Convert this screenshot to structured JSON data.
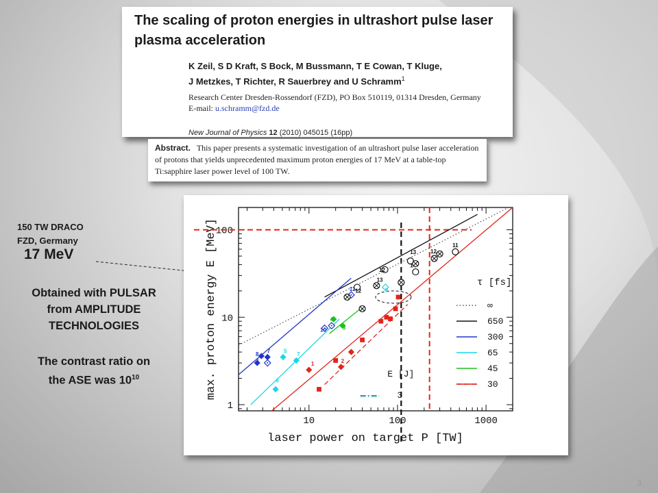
{
  "paper": {
    "title": "The scaling of proton energies in ultrashort pulse laser plasma acceleration",
    "authors_line1": "K Zeil, S D Kraft, S Bock, M Bussmann, T E Cowan, T Kluge,",
    "authors_line2": "J Metzkes, T Richter, R Sauerbrey and U Schramm",
    "authors_sup": "1",
    "affiliation": "Research Center Dresden-Rossendorf (FZD), PO Box 510119, 01314 Dresden, Germany",
    "email_label": "E-mail: ",
    "email": "u.schramm@fzd.de",
    "journal_name": "New Journal of Physics",
    "journal_volume": "12",
    "journal_rest": "(2010) 045015 (16pp)"
  },
  "abstract": {
    "label": "Abstract.",
    "text": "This paper presents a systematic investigation of an ultrashort pulse laser acceleration of protons that yields unprecedented maximum proton energies of 17 MeV at a table-top Ti:sapphire laser power level of 100 TW."
  },
  "annotations": {
    "draco_line1": "150 TW DRACO",
    "draco_line2": "FZD, Germany",
    "energy": "17 MeV",
    "pulsar_line1": "Obtained with PULSAR",
    "pulsar_line2": "from AMPLITUDE",
    "pulsar_line3": "TECHNOLOGIES",
    "contrast_line1": "The contrast ratio on",
    "contrast_line2": "the ASE was 10",
    "contrast_exp": "10"
  },
  "page_number": "3",
  "colors": {
    "red": "#e0251b",
    "blue": "#1f35c8",
    "cyan": "#19d6e6",
    "green": "#19c219",
    "black": "#111111"
  },
  "chart_data": {
    "type": "scatter",
    "xlabel": "laser power on target P_L [TW]",
    "ylabel": "max. proton energy E_p [MeV]",
    "x_scale": "log",
    "y_scale": "log",
    "xlim": [
      1.6,
      2000
    ],
    "ylim": [
      0.85,
      180
    ],
    "x_ticks": [
      10,
      100,
      1000
    ],
    "y_ticks": [
      1,
      10,
      100
    ],
    "legend": {
      "title": "τ_l [fs]",
      "placement": "right",
      "entries": [
        "∞",
        "650",
        "300",
        "65",
        "45",
        "30"
      ],
      "energy_label": "E_l [J]",
      "energy_value": "3"
    },
    "guides": {
      "red_horizontal_y": 100,
      "black_vertical_x": 110,
      "red_vertical_x": 230
    },
    "lines": [
      {
        "name": "∞",
        "color": "#555555",
        "dash": "dotted",
        "points": [
          [
            1.6,
            4.8
          ],
          [
            2000,
            190
          ]
        ]
      },
      {
        "name": "650",
        "color": "#111111",
        "dash": "solid",
        "points": [
          [
            15,
            17
          ],
          [
            800,
            150
          ]
        ]
      },
      {
        "name": "300",
        "color": "#1f35c8",
        "dash": "solid",
        "points": [
          [
            1.6,
            2.2
          ],
          [
            30,
            28
          ]
        ]
      },
      {
        "name": "65",
        "color": "#19d6e6",
        "dash": "solid",
        "points": [
          [
            2.2,
            1.0
          ],
          [
            22,
            9.5
          ]
        ]
      },
      {
        "name": "45",
        "color": "#19c219",
        "dash": "solid",
        "points": [
          [
            17,
            6.5
          ],
          [
            40,
            13
          ]
        ]
      },
      {
        "name": "30",
        "color": "#e0251b",
        "dash": "solid",
        "points": [
          [
            3.8,
            0.85
          ],
          [
            2000,
            180
          ]
        ]
      },
      {
        "name": "30 (3 J)",
        "color": "#e0251b",
        "dash": "dashed",
        "points": [
          [
            15,
            1.7
          ],
          [
            130,
            14
          ]
        ]
      }
    ],
    "series": [
      {
        "name": "300",
        "color": "#1f35c8",
        "marker": "diamond",
        "points": [
          [
            2.6,
            3.0
          ],
          [
            2.9,
            3.6
          ],
          [
            3.4,
            3.5
          ]
        ],
        "labels": [
          [
            2.6,
            3.0,
            "3"
          ],
          [
            2.6,
            3.6,
            "8"
          ],
          [
            3.5,
            3.9,
            "7"
          ]
        ]
      },
      {
        "name": "65",
        "color": "#19d6e6",
        "marker": "diamond",
        "points": [
          [
            4.2,
            1.5
          ],
          [
            5.1,
            3.5
          ],
          [
            7.2,
            3.2
          ]
        ],
        "labels": [
          [
            4.4,
            1.8,
            "6"
          ],
          [
            5.4,
            3.9,
            "5"
          ],
          [
            7.6,
            3.6,
            "7"
          ]
        ]
      },
      {
        "name": "45",
        "color": "#19c219",
        "marker": "diamond",
        "points": [
          [
            19,
            9.5
          ],
          [
            24,
            8.0
          ]
        ],
        "labels": [
          [
            18,
            9.0,
            "4"
          ],
          [
            25,
            7.2,
            "3"
          ]
        ]
      },
      {
        "name": "30",
        "color": "#e0251b",
        "marker": "diamond",
        "points": [
          [
            10,
            2.5
          ],
          [
            23,
            2.7
          ],
          [
            30,
            4.0
          ]
        ],
        "labels": [
          [
            11,
            2.8,
            "1"
          ],
          [
            24,
            3.0,
            "2"
          ]
        ]
      },
      {
        "name": "30 (3 J)",
        "color": "#e0251b",
        "marker": "square",
        "points": [
          [
            13,
            1.5
          ],
          [
            20,
            3.2
          ],
          [
            40,
            5.5
          ],
          [
            65,
            9.0
          ],
          [
            75,
            10
          ],
          [
            83,
            9.6
          ],
          [
            95,
            12.5
          ],
          [
            102,
            17
          ]
        ]
      },
      {
        "name": "300 (open)",
        "color": "#1f35c8",
        "marker": "diamond-open-dot",
        "points": [
          [
            15,
            7.5
          ],
          [
            18,
            8.0
          ],
          [
            30,
            18
          ]
        ],
        "labels": [
          [
            14.5,
            6.8,
            "10"
          ],
          [
            31,
            20,
            "12"
          ]
        ]
      },
      {
        "name": "300 (open 2)",
        "color": "#1f35c8",
        "marker": "diamond-open-dot",
        "points": [
          [
            3.4,
            3.0
          ]
        ]
      },
      {
        "name": "65 (open)",
        "color": "#19d6e6",
        "marker": "diamond-open",
        "points": [
          [
            73,
            22
          ]
        ],
        "labels": [
          [
            75,
            19.5,
            "9"
          ]
        ]
      },
      {
        "name": "650 (circles)",
        "color": "#111111",
        "marker": "circle-open",
        "points": [
          [
            35,
            22
          ],
          [
            72,
            35
          ],
          [
            140,
            44
          ],
          [
            160,
            33
          ],
          [
            450,
            56
          ]
        ],
        "labels": [
          [
            67,
            33,
            "12"
          ],
          [
            150,
            53,
            "13"
          ],
          [
            150,
            37,
            "14"
          ],
          [
            450,
            63,
            "11"
          ]
        ]
      },
      {
        "name": "650 (crossed)",
        "color": "#111111",
        "marker": "circle-cross",
        "points": [
          [
            27,
            17
          ],
          [
            40,
            12.5
          ],
          [
            58,
            23
          ],
          [
            110,
            25
          ],
          [
            160,
            41
          ],
          [
            260,
            47
          ],
          [
            300,
            53
          ]
        ],
        "labels": [
          [
            36,
            19,
            "12"
          ],
          [
            63,
            25.5,
            "13"
          ],
          [
            255,
            54,
            "12"
          ]
        ]
      }
    ]
  }
}
